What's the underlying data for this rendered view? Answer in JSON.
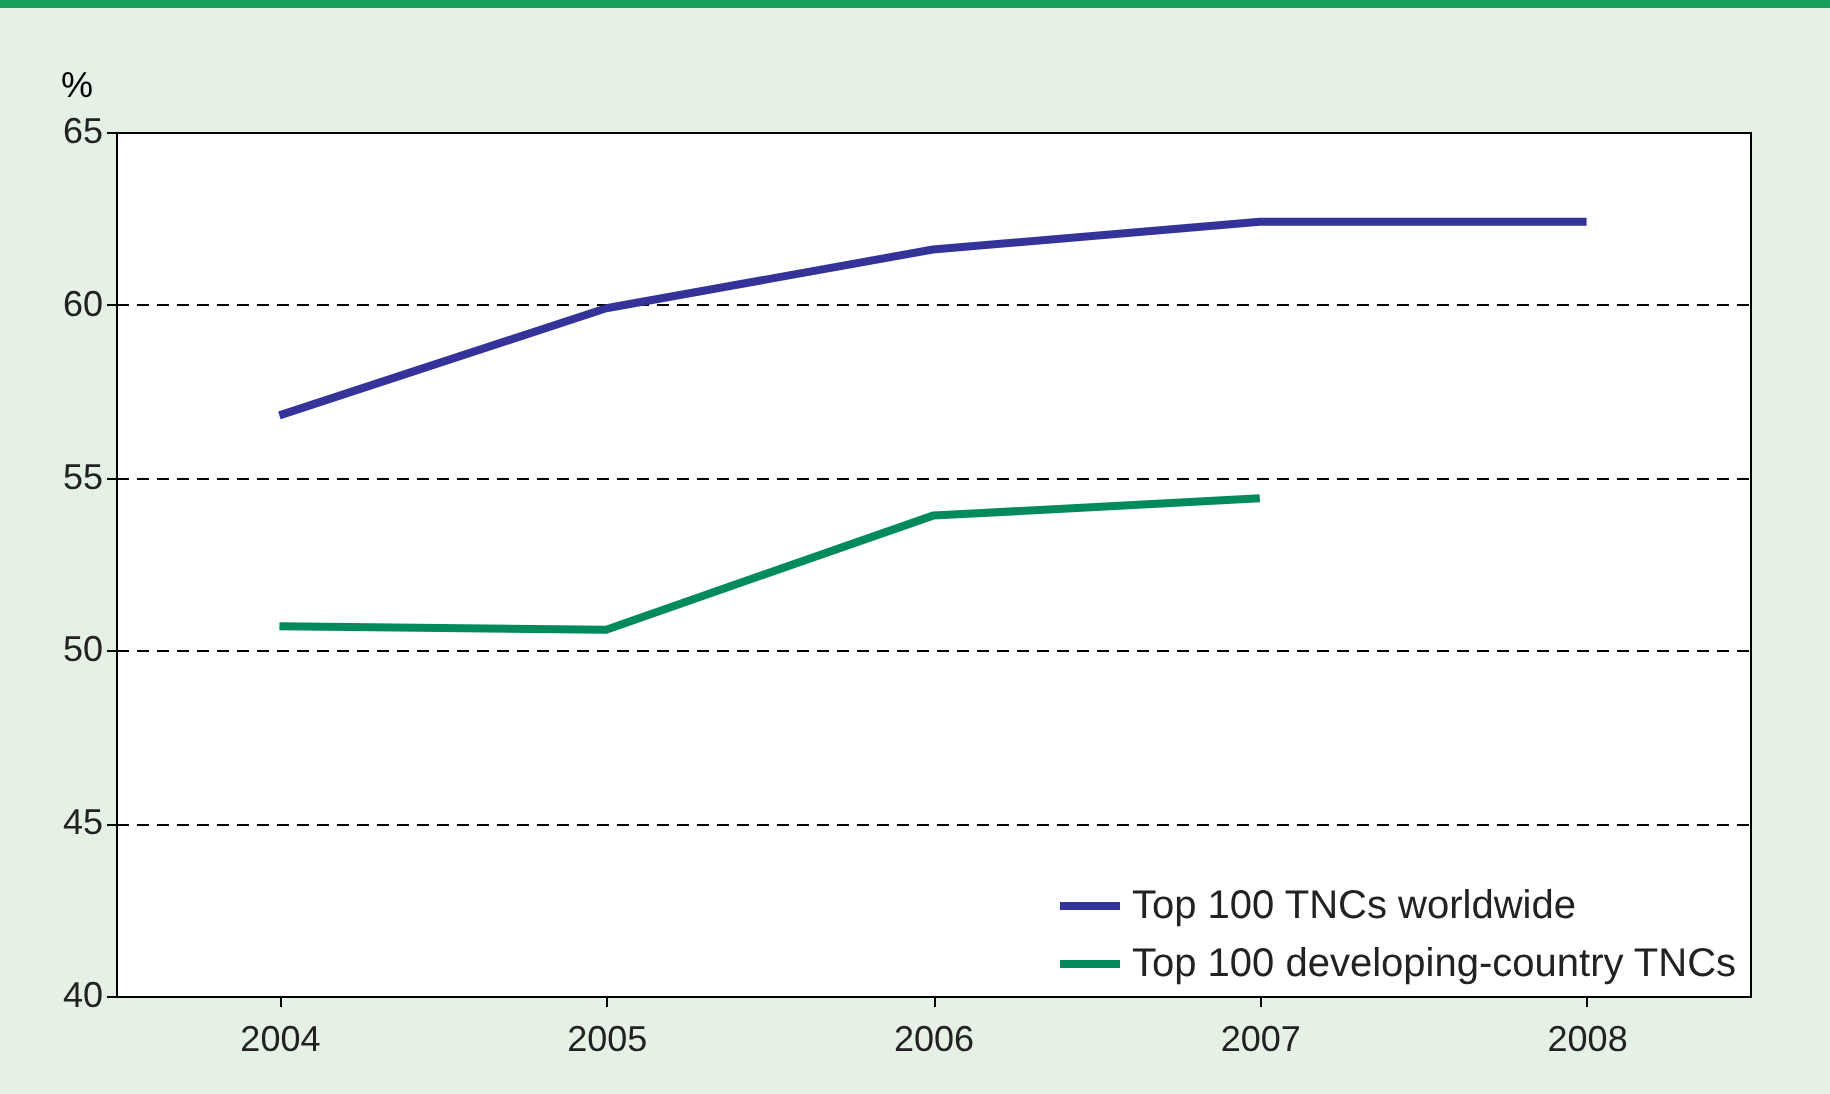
{
  "chart_data": {
    "type": "line",
    "ylabel": "%",
    "categories": [
      "2004",
      "2005",
      "2006",
      "2007",
      "2008"
    ],
    "series": [
      {
        "name": "Top 100 TNCs worldwide",
        "color": "#333399",
        "values": [
          56.8,
          59.9,
          61.6,
          62.4,
          62.4
        ]
      },
      {
        "name": "Top 100 developing-country TNCs",
        "color": "#008a5e",
        "values": [
          50.7,
          50.6,
          53.9,
          54.4,
          null
        ]
      }
    ],
    "ylim": [
      40,
      65
    ],
    "yticks": [
      40,
      45,
      50,
      55,
      60,
      65
    ],
    "grid": "y",
    "legend": "bottom right",
    "line_style": "solid",
    "marker": "none"
  }
}
